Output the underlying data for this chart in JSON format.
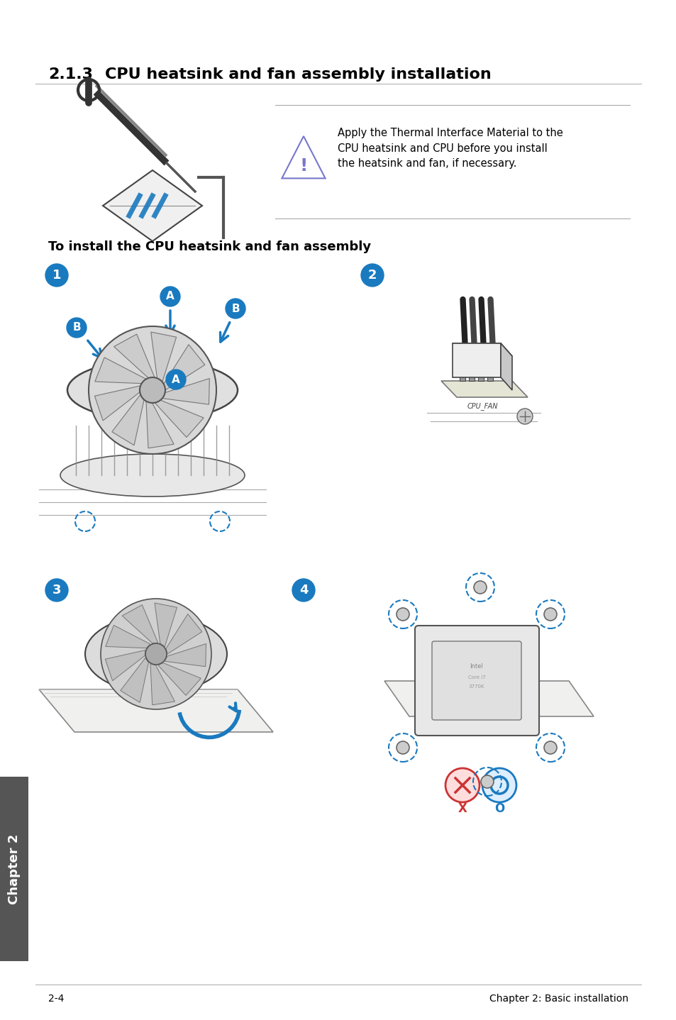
{
  "title_section": "2.1.3",
  "title_text": "CPU heatsink and fan assembly installation",
  "warning_text": "Apply the Thermal Interface Material to the\nCPU heatsink and CPU before you install\nthe heatsink and fan, if necessary.",
  "subtitle": "To install the CPU heatsink and fan assembly",
  "footer_left": "2-4",
  "footer_right": "Chapter 2: Basic installation",
  "chapter_tab": "Chapter 2",
  "bg_color": "#ffffff",
  "tab_color": "#555555",
  "tab_text_color": "#ffffff",
  "blue_color": "#1a7abf",
  "step_text": "#ffffff",
  "warning_icon_color": "#7777cc"
}
